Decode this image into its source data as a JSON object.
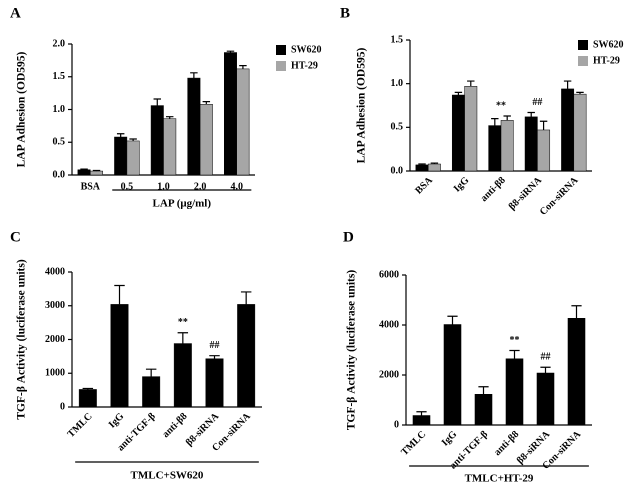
{
  "chart_data": [
    {
      "type": "bar",
      "label": "A",
      "ylabel": "LAP Adhesion (OD595)",
      "xlabel": "LAP (μg/ml)",
      "categories": [
        "BSA",
        "0.5",
        "1.0",
        "2.0",
        "4.0"
      ],
      "series": [
        {
          "name": "SW620",
          "color": "#000000",
          "values": [
            0.08,
            0.58,
            1.06,
            1.48,
            1.87
          ],
          "errors": [
            0.01,
            0.05,
            0.1,
            0.08,
            0.02
          ]
        },
        {
          "name": "HT-29",
          "color": "#a6a6a6",
          "values": [
            0.06,
            0.52,
            0.86,
            1.08,
            1.62
          ],
          "errors": [
            0.01,
            0.03,
            0.03,
            0.04,
            0.05
          ]
        }
      ],
      "ylim": [
        0,
        2
      ],
      "yticks": [
        {
          "value": 0,
          "label": "0.0"
        },
        0.5,
        {
          "value": 1,
          "label": "1.0"
        },
        1.5,
        {
          "value": 2,
          "label": "2.0"
        }
      ]
    },
    {
      "type": "bar",
      "label": "B",
      "ylabel": "LAP Adhesion (OD595)",
      "categories": [
        "BSA",
        "IgG",
        "anti-β8",
        "β8-siRNA",
        "Con-siRNA"
      ],
      "series": [
        {
          "name": "SW620",
          "color": "#000000",
          "values": [
            0.07,
            0.87,
            0.52,
            0.62,
            0.94
          ],
          "errors": [
            0.01,
            0.03,
            0.08,
            0.05,
            0.09
          ]
        },
        {
          "name": "HT-29",
          "color": "#a6a6a6",
          "values": [
            0.08,
            0.97,
            0.58,
            0.47,
            0.88
          ],
          "errors": [
            0.01,
            0.06,
            0.05,
            0.1,
            0.02
          ]
        }
      ],
      "annotations": [
        {
          "text": "**",
          "category": "anti-β8"
        },
        {
          "text": "##",
          "category": "β8-siRNA"
        }
      ],
      "ylim": [
        0,
        1.5
      ],
      "yticks": [
        {
          "value": 0,
          "label": "0.0"
        },
        0.5,
        {
          "value": 1,
          "label": "1.0"
        },
        1.5
      ]
    },
    {
      "type": "bar",
      "label": "C",
      "ylabel": "TGF-β Activity (luciferase units)",
      "xlabel": "TMLC+SW620",
      "categories": [
        "TMLC",
        "IgG",
        "anti-TGF-β",
        "anti-β8",
        "β8-siRNA",
        "Con-siRNA"
      ],
      "series": [
        {
          "color": "#000000",
          "values": [
            520,
            3040,
            900,
            1880,
            1430,
            3040
          ],
          "errors": [
            30,
            560,
            220,
            320,
            90,
            370
          ]
        }
      ],
      "annotations": [
        {
          "text": "**",
          "category": "anti-β8"
        },
        {
          "text": "##",
          "category": "β8-siRNA"
        }
      ],
      "ylim": [
        0,
        4000
      ],
      "yticks": [
        0,
        1000,
        2000,
        3000,
        4000
      ]
    },
    {
      "type": "bar",
      "label": "D",
      "ylabel": "TGF-β Activity (luciferase units)",
      "xlabel": "TMLC+HT-29",
      "categories": [
        "TMLC",
        "IgG",
        "anti-TGF-β",
        "anti-β8",
        "β8-siRNA",
        "Con-siRNA"
      ],
      "series": [
        {
          "color": "#000000",
          "values": [
            380,
            4020,
            1230,
            2650,
            2080,
            4270
          ],
          "errors": [
            150,
            330,
            300,
            330,
            230,
            500
          ]
        }
      ],
      "annotations": [
        {
          "text": "**",
          "category": "anti-β8"
        },
        {
          "text": "##",
          "category": "β8-siRNA"
        }
      ],
      "ylim": [
        0,
        6000
      ],
      "yticks": [
        0,
        2000,
        4000,
        6000
      ]
    }
  ]
}
